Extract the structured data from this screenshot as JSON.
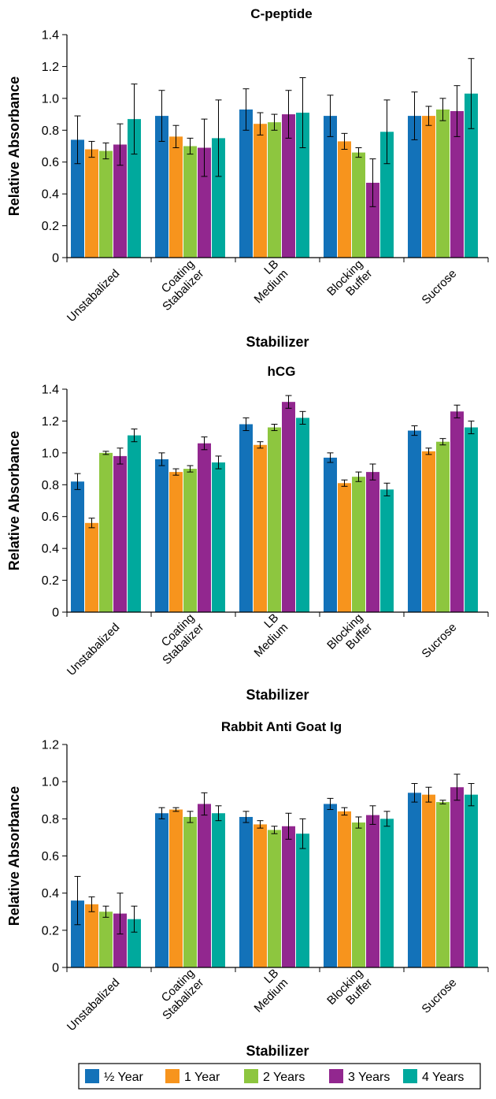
{
  "chart_data": [
    {
      "type": "bar",
      "title": "C-peptide",
      "xlabel": "Stabilizer",
      "ylabel": "Relative Absorbance",
      "ylim": [
        0,
        1.4
      ],
      "yticks": [
        "0",
        "0.2",
        "0.4",
        "0.6",
        "0.8",
        "1.0",
        "1.2",
        "1.4"
      ],
      "categories": [
        [
          "Unstabalized"
        ],
        [
          "Coating",
          "Stabalizer"
        ],
        [
          "LB",
          "Medium"
        ],
        [
          "Blocking",
          "Buffer"
        ],
        [
          "Sucrose"
        ]
      ],
      "series": [
        {
          "name": "½ Year",
          "values": [
            0.74,
            0.89,
            0.93,
            0.89,
            0.89
          ],
          "errors": [
            0.15,
            0.16,
            0.13,
            0.13,
            0.15
          ]
        },
        {
          "name": "1 Year",
          "values": [
            0.68,
            0.76,
            0.84,
            0.73,
            0.89
          ],
          "errors": [
            0.05,
            0.07,
            0.07,
            0.05,
            0.06
          ]
        },
        {
          "name": "2 Years",
          "values": [
            0.67,
            0.7,
            0.85,
            0.66,
            0.93
          ],
          "errors": [
            0.05,
            0.05,
            0.05,
            0.03,
            0.07
          ]
        },
        {
          "name": "3 Years",
          "values": [
            0.71,
            0.69,
            0.9,
            0.47,
            0.92
          ],
          "errors": [
            0.13,
            0.18,
            0.15,
            0.15,
            0.16
          ]
        },
        {
          "name": "4 Years",
          "values": [
            0.87,
            0.75,
            0.91,
            0.79,
            1.03
          ],
          "errors": [
            0.22,
            0.24,
            0.22,
            0.2,
            0.22
          ]
        }
      ]
    },
    {
      "type": "bar",
      "title": "hCG",
      "xlabel": "Stabilizer",
      "ylabel": "Relative Absorbance",
      "ylim": [
        0,
        1.4
      ],
      "yticks": [
        "0",
        "0.2",
        "0.4",
        "0.6",
        "0.8",
        "1.0",
        "1.2",
        "1.4"
      ],
      "categories": [
        [
          "Unstabalized"
        ],
        [
          "Coating",
          "Stabalizer"
        ],
        [
          "LB",
          "Medium"
        ],
        [
          "Blocking",
          "Buffer"
        ],
        [
          "Sucrose"
        ]
      ],
      "series": [
        {
          "name": "½ Year",
          "values": [
            0.82,
            0.96,
            1.18,
            0.97,
            1.14
          ],
          "errors": [
            0.05,
            0.04,
            0.04,
            0.03,
            0.03
          ]
        },
        {
          "name": "1 Year",
          "values": [
            0.56,
            0.88,
            1.05,
            0.81,
            1.01
          ],
          "errors": [
            0.03,
            0.02,
            0.02,
            0.02,
            0.02
          ]
        },
        {
          "name": "2 Years",
          "values": [
            1.0,
            0.9,
            1.16,
            0.85,
            1.07
          ],
          "errors": [
            0.01,
            0.02,
            0.02,
            0.03,
            0.02
          ]
        },
        {
          "name": "3 Years",
          "values": [
            0.98,
            1.06,
            1.32,
            0.88,
            1.26
          ],
          "errors": [
            0.05,
            0.04,
            0.04,
            0.05,
            0.04
          ]
        },
        {
          "name": "4 Years",
          "values": [
            1.11,
            0.94,
            1.22,
            0.77,
            1.16
          ],
          "errors": [
            0.04,
            0.04,
            0.04,
            0.04,
            0.04
          ]
        }
      ]
    },
    {
      "type": "bar",
      "title": "Rabbit Anti Goat Ig",
      "xlabel": "Stabilizer",
      "ylabel": "Relative Absorbance",
      "ylim": [
        0,
        1.2
      ],
      "yticks": [
        "0",
        "0.2",
        "0.4",
        "0.6",
        "0.8",
        "1.0",
        "1.2"
      ],
      "categories": [
        [
          "Unstabalized"
        ],
        [
          "Coating",
          "Stabalizer"
        ],
        [
          "LB",
          "Medium"
        ],
        [
          "Blocking",
          "Buffer"
        ],
        [
          "Sucrose"
        ]
      ],
      "series": [
        {
          "name": "½ Year",
          "values": [
            0.36,
            0.83,
            0.81,
            0.88,
            0.94
          ],
          "errors": [
            0.13,
            0.03,
            0.03,
            0.03,
            0.05
          ]
        },
        {
          "name": "1 Year",
          "values": [
            0.34,
            0.85,
            0.77,
            0.84,
            0.93
          ],
          "errors": [
            0.04,
            0.01,
            0.02,
            0.02,
            0.04
          ]
        },
        {
          "name": "2 Years",
          "values": [
            0.3,
            0.81,
            0.74,
            0.78,
            0.89
          ],
          "errors": [
            0.03,
            0.03,
            0.02,
            0.03,
            0.01
          ]
        },
        {
          "name": "3 Years",
          "values": [
            0.29,
            0.88,
            0.76,
            0.82,
            0.97
          ],
          "errors": [
            0.11,
            0.06,
            0.07,
            0.05,
            0.07
          ]
        },
        {
          "name": "4 Years",
          "values": [
            0.26,
            0.83,
            0.72,
            0.8,
            0.93
          ],
          "errors": [
            0.07,
            0.04,
            0.08,
            0.04,
            0.06
          ]
        }
      ]
    }
  ],
  "legend": {
    "placement": "bottom",
    "items": [
      {
        "label": "½ Year",
        "color": "#1372b9"
      },
      {
        "label": "1 Year",
        "color": "#f7941d"
      },
      {
        "label": "2 Years",
        "color": "#8dc63f"
      },
      {
        "label": "3 Years",
        "color": "#92278f"
      },
      {
        "label": "4 Years",
        "color": "#00a99d"
      }
    ]
  }
}
